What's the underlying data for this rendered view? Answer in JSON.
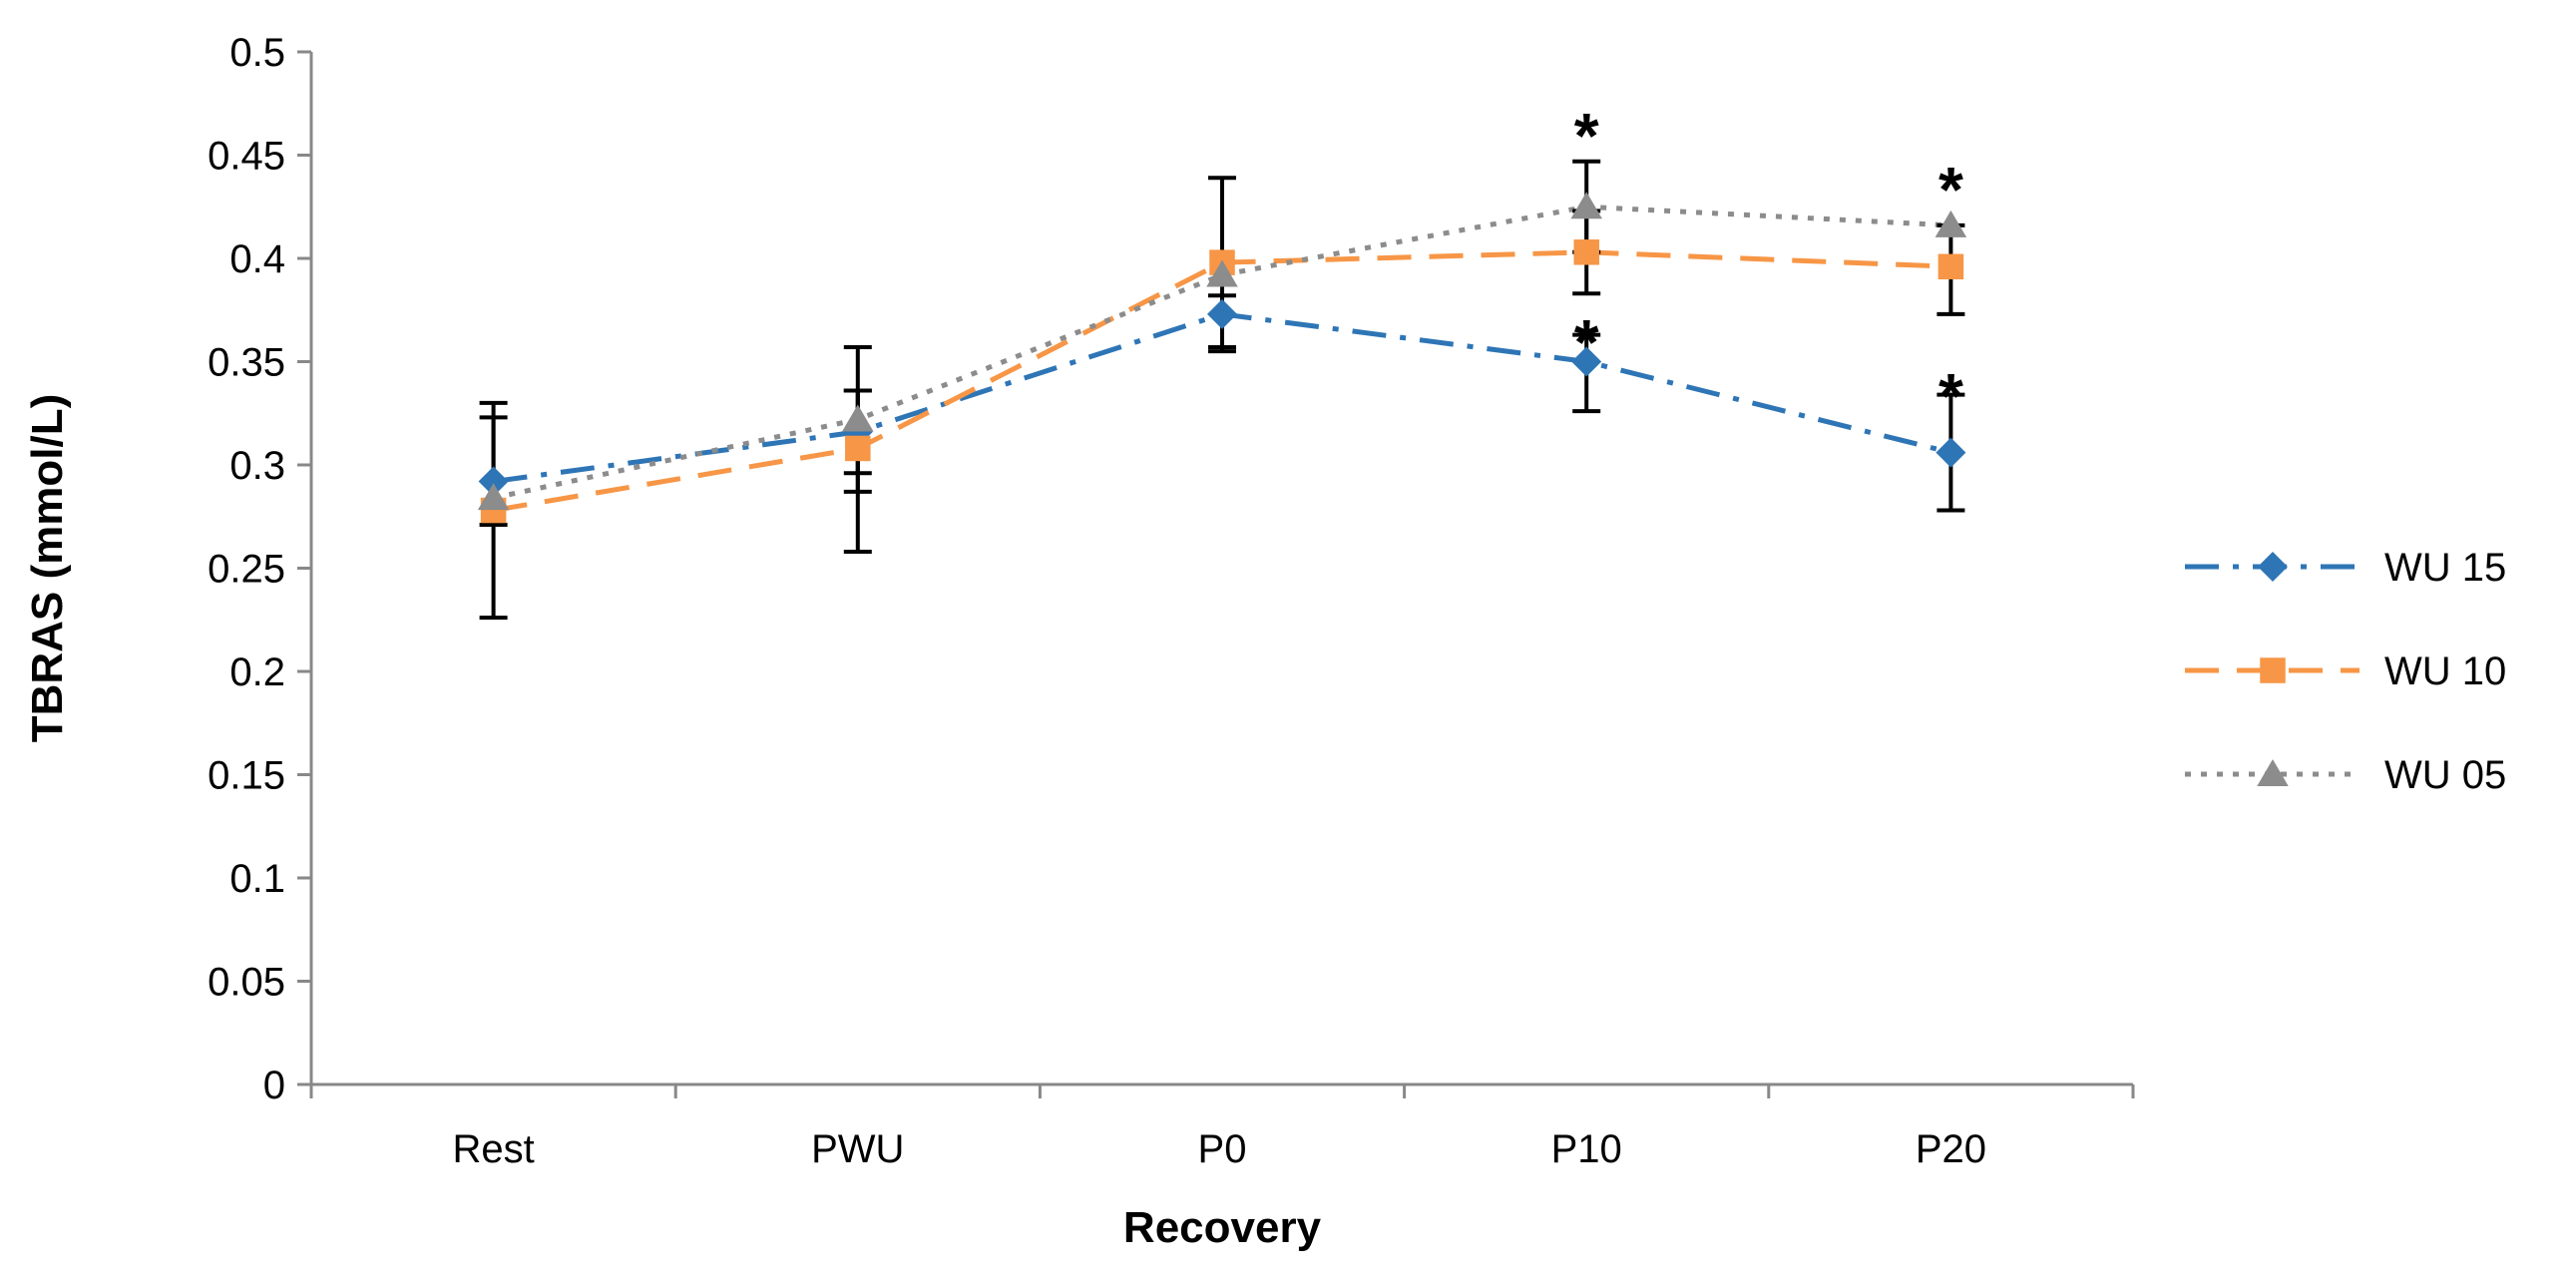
{
  "chart_data": {
    "type": "line",
    "title": "",
    "xlabel": "Recovery",
    "ylabel": "TBRAS (mmol/L)",
    "categories": [
      "Rest",
      "PWU",
      "P0",
      "P10",
      "P20"
    ],
    "ylim": [
      0,
      0.5
    ],
    "yticks": [
      "0",
      "0.05",
      "0.1",
      "0.15",
      "0.2",
      "0.25",
      "0.3",
      "0.35",
      "0.4",
      "0.45",
      "0.5"
    ],
    "grid": false,
    "legend_position": "right",
    "series": [
      {
        "name": "WU 15",
        "color": "#2E75B6",
        "marker": "diamond",
        "line_style": "dash-dot",
        "values": [
          0.292,
          0.316,
          0.373,
          0.35,
          0.306
        ],
        "error_plus": [
          0.038,
          0.02,
          0.009,
          0.013,
          0.028
        ],
        "error_minus": [
          0.021,
          0.02,
          0.018,
          0.024,
          0.028
        ]
      },
      {
        "name": "WU 10",
        "color": "#F79646",
        "marker": "square",
        "line_style": "long-dash",
        "values": [
          0.278,
          0.308,
          0.398,
          0.403,
          0.396
        ],
        "error_plus": [
          0.045,
          0.028,
          0.041,
          0.02,
          0.02
        ],
        "error_minus": [
          0.052,
          0.05,
          0.041,
          0.02,
          0.023
        ]
      },
      {
        "name": "WU 05",
        "color": "#8C8C8C",
        "marker": "triangle",
        "line_style": "dotted",
        "values": [
          0.284,
          0.322,
          0.392,
          0.425,
          0.416
        ],
        "error_plus": [
          0.0,
          0.035,
          0.0,
          0.022,
          0.0
        ],
        "error_minus": [
          0.0,
          0.035,
          0.0,
          0.022,
          0.0
        ]
      }
    ],
    "annotations": [
      {
        "text": "*",
        "category": "P10",
        "y": 0.468
      },
      {
        "text": "*",
        "category": "P10",
        "y": 0.368
      },
      {
        "text": "*",
        "category": "P20",
        "y": 0.442
      },
      {
        "text": "*",
        "category": "P20",
        "y": 0.342
      }
    ]
  }
}
